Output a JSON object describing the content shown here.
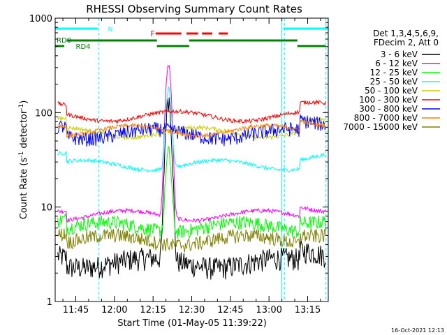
{
  "chart_data": {
    "type": "line",
    "title": "RHESSI Observing Summary Count Rates",
    "xlabel": "Start Time (01-May-05 11:39:22)",
    "ylabel_main": "Count Rate (s",
    "ylabel_sup1": "-1",
    "ylabel_mid": " detector",
    "ylabel_sup2": "-1",
    "ylabel_end": ")",
    "yscale": "log",
    "ylim": [
      1,
      1000
    ],
    "xlim_minutes": [
      -4.6,
      16.6
    ],
    "x_tick_labels": [
      "11:45",
      "12:00",
      "12:15",
      "12:30",
      "12:45",
      "13:00",
      "13:15"
    ],
    "y_tick_labels": [
      "1",
      "10",
      "100",
      "1000"
    ],
    "legend_header": [
      "Det 1,3,4,5,6,9,",
      "FDecim 2, Att 0"
    ],
    "series": [
      {
        "name": "3 - 6 keV",
        "color": "#000000",
        "base": 2.6
      },
      {
        "name": "6 - 12 keV",
        "color": "#ff00ff",
        "base": 8.2
      },
      {
        "name": "12 - 25 keV",
        "color": "#00ff00",
        "base": 6.2
      },
      {
        "name": "25 - 50 keV",
        "color": "#00ffff",
        "base": 28
      },
      {
        "name": "50 - 100 keV",
        "color": "#cccc00",
        "base": 62
      },
      {
        "name": "100 - 300 keV",
        "color": "#ff0000",
        "base": 92
      },
      {
        "name": "300 - 800 keV",
        "color": "#0000ff",
        "base": 60
      },
      {
        "name": "800 - 7000 keV",
        "color": "#ff8000",
        "base": 65
      },
      {
        "name": "7000 - 15000 keV",
        "color": "#808000",
        "base": 4.5
      }
    ],
    "annotations": {
      "flare_label": "F",
      "night_label": "N",
      "rd0_label": "RD0",
      "rd4_label": "RD4"
    },
    "footer_timestamp": "16-Oct-2021 12:13"
  }
}
